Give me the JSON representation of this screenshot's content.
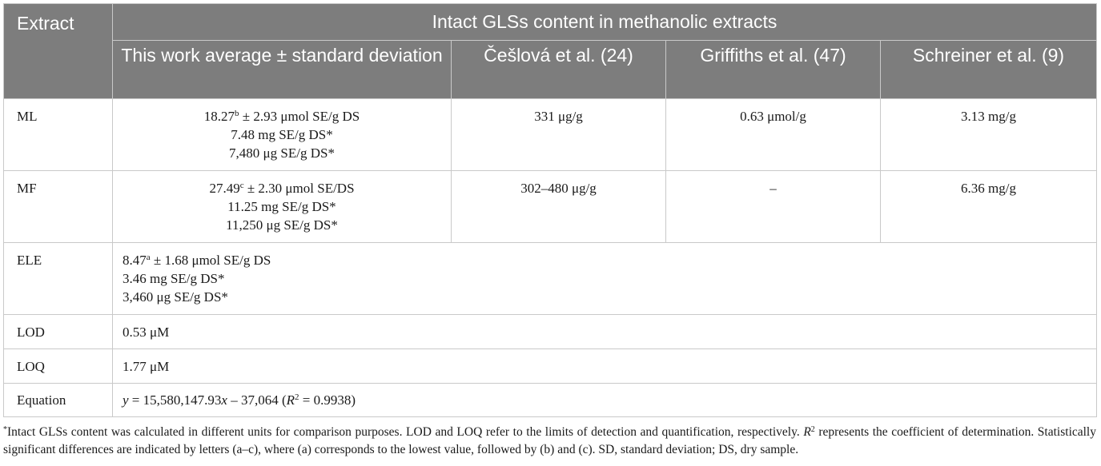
{
  "header": {
    "extract": "Extract",
    "group": "Intact GLSs content in methanolic extracts",
    "cols": [
      "This work average ± standard deviation",
      "Češlová et al. (24)",
      "Griffiths et al. (47)",
      "Schreiner et al. (9)"
    ]
  },
  "rows": {
    "ml": {
      "label": "ML",
      "v1_main": "18.27",
      "v1_sup": "b",
      "v1_rest": " ± 2.93 μmol SE/g DS",
      "v1_l2": "7.48 mg SE/g DS*",
      "v1_l3": "7,480 μg SE/g DS*",
      "c2": "331 μg/g",
      "c3": "0.63 μmol/g",
      "c4": "3.13 mg/g"
    },
    "mf": {
      "label": "MF",
      "v1_main": "27.49",
      "v1_sup": "c",
      "v1_rest": " ± 2.30 μmol SE/DS",
      "v1_l2": "11.25 mg SE/g DS*",
      "v1_l3": "11,250 μg SE/g DS*",
      "c2": "302–480 μg/g",
      "c3": "–",
      "c4": "6.36 mg/g"
    },
    "ele": {
      "label": "ELE",
      "v1_main": "8.47",
      "v1_sup": "a",
      "v1_rest": " ± 1.68 μmol SE/g DS",
      "v1_l2": "3.46 mg SE/g DS*",
      "v1_l3": "3,460 μg SE/g DS*"
    },
    "lod": {
      "label": "LOD",
      "value": "0.53 μM"
    },
    "loq": {
      "label": "LOQ",
      "value": "1.77 μM"
    },
    "eq": {
      "label": "Equation",
      "y": "y",
      "rhs_a": " = 15,580,147.93",
      "x": "x",
      "rhs_b": " – 37,064 (",
      "r": "R",
      "r_sup": "2",
      "rhs_c": " = 0.9938)"
    }
  },
  "footnote": {
    "mark": "*",
    "p1": "Intact GLSs content was calculated in different units for comparison purposes. LOD and LOQ refer to the limits of detection and quantification, respectively. ",
    "r": "R",
    "r_sup": "2",
    "p2": " represents the coefficient of determination. Statistically significant differences are indicated by letters (a–c), where (a) corresponds to the lowest value, followed by (b) and (c). SD, standard deviation; DS, dry sample."
  }
}
